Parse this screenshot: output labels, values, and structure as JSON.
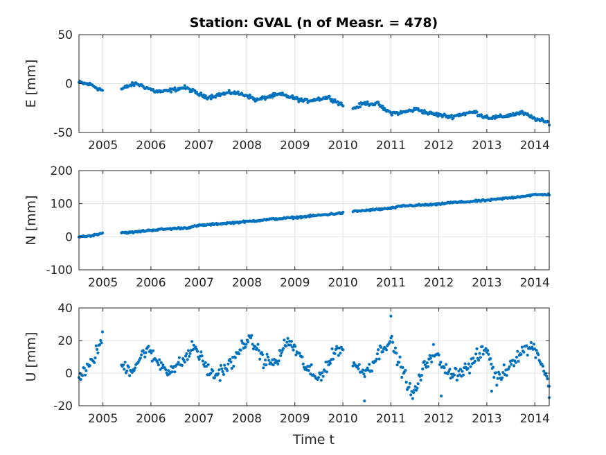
{
  "chart_data": {
    "type": "scatter",
    "title": "Station: GVAL (n of Measr. = 478)",
    "xlabel": "Time t",
    "x_tick_labels": [
      "2005",
      "2006",
      "2007",
      "2008",
      "2009",
      "2010",
      "2011",
      "2012",
      "2013",
      "2014"
    ],
    "xlim": [
      2004.5,
      2014.3
    ],
    "grid": true,
    "marker_color": "#0072BD",
    "panels": [
      {
        "ylabel": "E [mm]",
        "ylim": [
          -50,
          50
        ],
        "y_ticks": [
          50,
          0,
          -50
        ],
        "y_tick_labels": [
          "50",
          "0",
          "-50"
        ],
        "anchors": [
          [
            2004.5,
            1
          ],
          [
            2004.75,
            -1
          ],
          [
            2004.9,
            -5
          ],
          [
            2005.0,
            -7
          ],
          [
            2005.38,
            -6
          ],
          [
            2005.55,
            -2
          ],
          [
            2005.7,
            0
          ],
          [
            2005.85,
            -3
          ],
          [
            2006.0,
            -6
          ],
          [
            2006.1,
            -8
          ],
          [
            2006.3,
            -8
          ],
          [
            2006.5,
            -6
          ],
          [
            2006.7,
            -4
          ],
          [
            2006.85,
            -7
          ],
          [
            2007.0,
            -11
          ],
          [
            2007.2,
            -14
          ],
          [
            2007.45,
            -11
          ],
          [
            2007.7,
            -9
          ],
          [
            2008.0,
            -12
          ],
          [
            2008.2,
            -17
          ],
          [
            2008.4,
            -14
          ],
          [
            2008.7,
            -11
          ],
          [
            2009.0,
            -15
          ],
          [
            2009.2,
            -18
          ],
          [
            2009.45,
            -16
          ],
          [
            2009.7,
            -14
          ],
          [
            2009.85,
            -18
          ],
          [
            2010.0,
            -22
          ],
          [
            2010.2,
            -26
          ],
          [
            2010.45,
            -20
          ],
          [
            2010.75,
            -21
          ],
          [
            2010.85,
            -26
          ],
          [
            2011.0,
            -30
          ],
          [
            2011.2,
            -30
          ],
          [
            2011.55,
            -26
          ],
          [
            2011.75,
            -30
          ],
          [
            2012.0,
            -32
          ],
          [
            2012.25,
            -34
          ],
          [
            2012.5,
            -31
          ],
          [
            2012.75,
            -29
          ],
          [
            2012.9,
            -33
          ],
          [
            2013.1,
            -35
          ],
          [
            2013.3,
            -34
          ],
          [
            2013.6,
            -31
          ],
          [
            2013.75,
            -30
          ],
          [
            2013.95,
            -35
          ],
          [
            2014.2,
            -39
          ],
          [
            2014.3,
            -40
          ]
        ],
        "noise": 1.6,
        "gaps": [
          [
            2005.0,
            2005.38
          ],
          [
            2010.02,
            2010.2
          ]
        ]
      },
      {
        "ylabel": "N [mm]",
        "ylim": [
          -100,
          200
        ],
        "y_ticks": [
          200,
          100,
          0,
          -100
        ],
        "y_tick_labels": [
          "200",
          "100",
          "0",
          "-100"
        ],
        "anchors": [
          [
            2004.5,
            0
          ],
          [
            2004.75,
            3
          ],
          [
            2005.0,
            12
          ],
          [
            2005.38,
            13
          ],
          [
            2005.6,
            13
          ],
          [
            2006.0,
            20
          ],
          [
            2006.5,
            25
          ],
          [
            2006.75,
            27
          ],
          [
            2007.0,
            34
          ],
          [
            2007.5,
            40
          ],
          [
            2008.0,
            46
          ],
          [
            2008.5,
            53
          ],
          [
            2009.0,
            58
          ],
          [
            2009.5,
            65
          ],
          [
            2010.0,
            72
          ],
          [
            2010.2,
            76
          ],
          [
            2010.5,
            80
          ],
          [
            2011.0,
            86
          ],
          [
            2011.25,
            93
          ],
          [
            2011.5,
            95
          ],
          [
            2012.0,
            98
          ],
          [
            2012.2,
            103
          ],
          [
            2012.5,
            105
          ],
          [
            2013.0,
            110
          ],
          [
            2013.5,
            118
          ],
          [
            2014.0,
            127
          ],
          [
            2014.3,
            128
          ]
        ],
        "noise": 2.2,
        "gaps": [
          [
            2005.0,
            2005.38
          ],
          [
            2010.02,
            2010.2
          ]
        ]
      },
      {
        "ylabel": "U [mm]",
        "ylim": [
          -20,
          40
        ],
        "y_ticks": [
          40,
          20,
          0,
          -20
        ],
        "y_tick_labels": [
          "40",
          "20",
          "0",
          "-20"
        ],
        "anchors": [
          [
            2004.5,
            -2
          ],
          [
            2004.7,
            3
          ],
          [
            2004.85,
            12
          ],
          [
            2005.0,
            22
          ],
          [
            2005.38,
            5
          ],
          [
            2005.6,
            2
          ],
          [
            2005.75,
            8
          ],
          [
            2005.9,
            15
          ],
          [
            2006.1,
            8
          ],
          [
            2006.35,
            2
          ],
          [
            2006.55,
            4
          ],
          [
            2006.75,
            10
          ],
          [
            2006.9,
            17
          ],
          [
            2007.1,
            6
          ],
          [
            2007.3,
            -2
          ],
          [
            2007.5,
            2
          ],
          [
            2007.75,
            8
          ],
          [
            2007.95,
            20
          ],
          [
            2008.15,
            18
          ],
          [
            2008.35,
            8
          ],
          [
            2008.6,
            6
          ],
          [
            2008.85,
            20
          ],
          [
            2009.0,
            15
          ],
          [
            2009.2,
            5
          ],
          [
            2009.45,
            -4
          ],
          [
            2009.7,
            6
          ],
          [
            2009.9,
            16
          ],
          [
            2010.0,
            13
          ],
          [
            2010.2,
            8
          ],
          [
            2010.4,
            0
          ],
          [
            2010.6,
            5
          ],
          [
            2010.85,
            17
          ],
          [
            2011.0,
            20
          ],
          [
            2011.15,
            8
          ],
          [
            2011.3,
            -2
          ],
          [
            2011.45,
            -15
          ],
          [
            2011.7,
            4
          ],
          [
            2011.9,
            14
          ],
          [
            2012.1,
            2
          ],
          [
            2012.35,
            0
          ],
          [
            2012.6,
            3
          ],
          [
            2012.8,
            10
          ],
          [
            2013.0,
            15
          ],
          [
            2013.2,
            -4
          ],
          [
            2013.4,
            2
          ],
          [
            2013.6,
            10
          ],
          [
            2013.8,
            15
          ],
          [
            2014.0,
            16
          ],
          [
            2014.2,
            2
          ],
          [
            2014.3,
            -8
          ]
        ],
        "noise": 3.5,
        "gaps": [
          [
            2005.0,
            2005.38
          ],
          [
            2010.02,
            2010.2
          ]
        ],
        "outliers": [
          [
            2010.45,
            -17
          ],
          [
            2011.0,
            35
          ],
          [
            2012.05,
            -14
          ],
          [
            2013.1,
            -11
          ],
          [
            2014.3,
            -15
          ]
        ]
      }
    ]
  }
}
